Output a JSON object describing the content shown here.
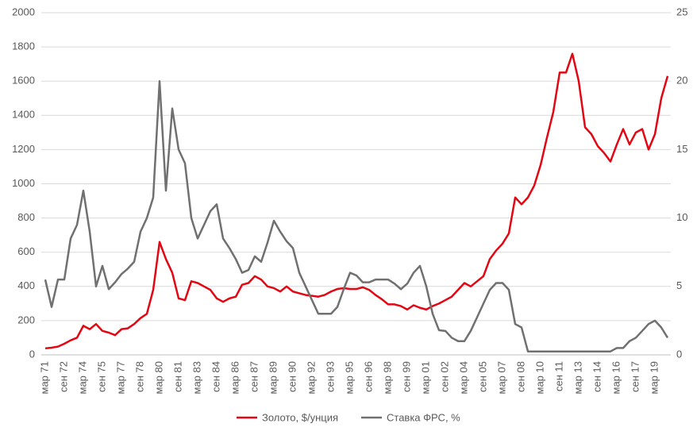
{
  "chart_data": {
    "type": "line",
    "categories": [
      "мар 71",
      null,
      null,
      "сен 72",
      null,
      null,
      "мар 74",
      null,
      null,
      "сен 75",
      null,
      null,
      "мар 77",
      null,
      null,
      "сен 78",
      null,
      null,
      "мар 80",
      null,
      null,
      "сен 81",
      null,
      null,
      "мар 83",
      null,
      null,
      "сен 84",
      null,
      null,
      "мар 86",
      null,
      null,
      "сен 87",
      null,
      null,
      "мар 89",
      null,
      null,
      "сен 90",
      null,
      null,
      "мар 92",
      null,
      null,
      "сен 93",
      null,
      null,
      "мар 95",
      null,
      null,
      "сен 96",
      null,
      null,
      "мар 98",
      null,
      null,
      "сен 99",
      null,
      null,
      "мар 01",
      null,
      null,
      "сен 02",
      null,
      null,
      "мар 04",
      null,
      null,
      "сен 05",
      null,
      null,
      "мар 07",
      null,
      null,
      "сен 08",
      null,
      null,
      "мар 10",
      null,
      null,
      "сен 11",
      null,
      null,
      "мар 13",
      null,
      null,
      "сен 14",
      null,
      null,
      "мар 16",
      null,
      null,
      "сен 17",
      null,
      null,
      "мар 19",
      null,
      null
    ],
    "series": [
      {
        "name": "Золото, $/унция",
        "color": "#e30613",
        "axis": "y",
        "values": [
          38,
          42,
          48,
          65,
          85,
          100,
          170,
          150,
          180,
          140,
          130,
          115,
          150,
          155,
          180,
          215,
          240,
          380,
          660,
          560,
          480,
          330,
          320,
          430,
          420,
          400,
          380,
          330,
          310,
          330,
          340,
          410,
          420,
          460,
          440,
          400,
          390,
          370,
          400,
          370,
          360,
          350,
          345,
          340,
          350,
          370,
          385,
          390,
          385,
          385,
          395,
          380,
          350,
          325,
          295,
          295,
          285,
          265,
          290,
          275,
          265,
          285,
          300,
          320,
          340,
          380,
          420,
          400,
          430,
          460,
          560,
          610,
          650,
          710,
          920,
          880,
          920,
          990,
          1110,
          1270,
          1420,
          1650,
          1650,
          1760,
          1600,
          1330,
          1290,
          1220,
          1180,
          1130,
          1230,
          1320,
          1230,
          1300,
          1320,
          1200,
          1290,
          1500,
          1630
        ]
      },
      {
        "name": "Ставка ФРС, %",
        "color": "#707070",
        "axis": "y2",
        "values": [
          5.5,
          3.5,
          5.5,
          5.5,
          8.5,
          9.5,
          12,
          9,
          5,
          6.5,
          4.8,
          5.3,
          5.9,
          6.3,
          6.8,
          9,
          10,
          11.5,
          20,
          12,
          18,
          15,
          14,
          10,
          8.5,
          9.5,
          10.5,
          11,
          8.5,
          7.8,
          7,
          6,
          6.2,
          7.2,
          6.8,
          8.2,
          9.8,
          9,
          8.3,
          7.8,
          6,
          5,
          4,
          3,
          3,
          3,
          3.5,
          4.8,
          6,
          5.8,
          5.3,
          5.3,
          5.5,
          5.5,
          5.5,
          5.2,
          4.8,
          5.2,
          6,
          6.5,
          5,
          3,
          1.8,
          1.75,
          1.25,
          1,
          1,
          1.75,
          2.75,
          3.75,
          4.75,
          5.25,
          5.25,
          4.75,
          2.25,
          2,
          0.25,
          0.25,
          0.25,
          0.25,
          0.25,
          0.25,
          0.25,
          0.25,
          0.25,
          0.25,
          0.25,
          0.25,
          0.25,
          0.25,
          0.5,
          0.5,
          1,
          1.25,
          1.75,
          2.25,
          2.5,
          2,
          1.25
        ]
      }
    ],
    "ylim": [
      0,
      2000
    ],
    "yticks": [
      0,
      200,
      400,
      600,
      800,
      1000,
      1200,
      1400,
      1600,
      1800,
      2000
    ],
    "y2lim": [
      0,
      25
    ],
    "y2ticks": [
      0,
      5,
      10,
      15,
      20,
      25
    ],
    "grid": true,
    "legend": "bottom"
  }
}
